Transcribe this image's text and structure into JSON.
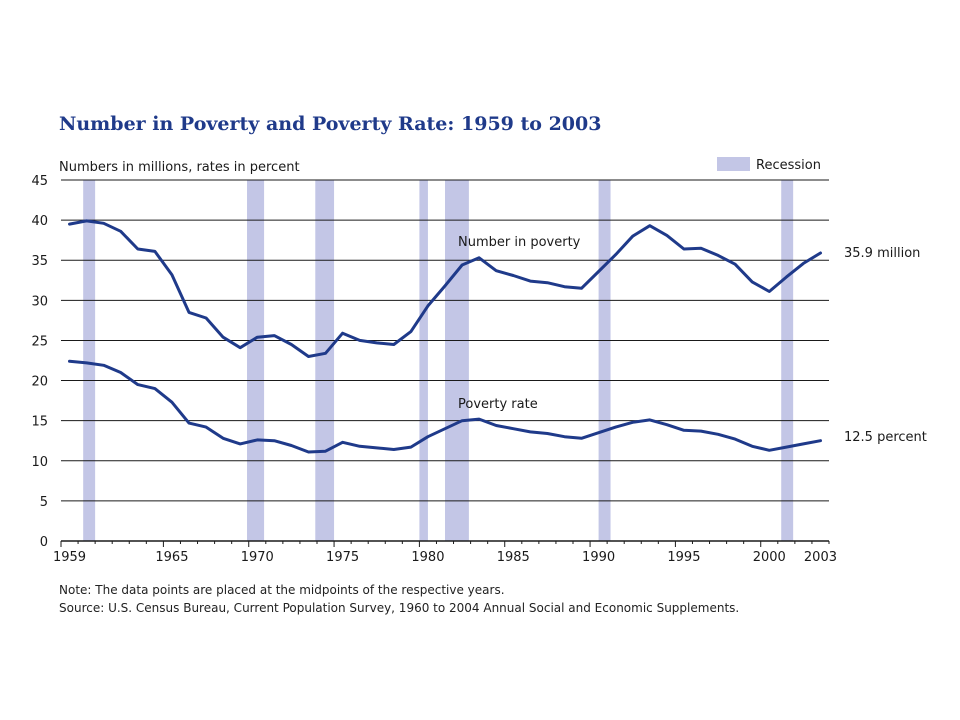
{
  "chart_data": {
    "type": "line",
    "title": "Number in Poverty and Poverty Rate:  1959 to 2003",
    "ylabel": "Numbers in millions, rates in percent",
    "ylim": [
      0,
      45
    ],
    "yticks": [
      0,
      5,
      10,
      15,
      20,
      25,
      30,
      35,
      40,
      45
    ],
    "xlim": [
      1959,
      2003
    ],
    "xticks": [
      1959,
      1965,
      1970,
      1975,
      1980,
      1985,
      1990,
      1995,
      2000,
      2003
    ],
    "grid": true,
    "legend": {
      "label": "Recession",
      "color": "#c3c6e6",
      "position": "top-right"
    },
    "recessions": [
      [
        1960.3,
        1961.0
      ],
      [
        1969.9,
        1970.9
      ],
      [
        1973.9,
        1975.0
      ],
      [
        1980.0,
        1980.5
      ],
      [
        1981.5,
        1982.9
      ],
      [
        1990.5,
        1991.2
      ],
      [
        2001.2,
        2001.9
      ]
    ],
    "x": [
      1959,
      1960,
      1961,
      1962,
      1963,
      1964,
      1965,
      1966,
      1967,
      1968,
      1969,
      1970,
      1971,
      1972,
      1973,
      1974,
      1975,
      1976,
      1977,
      1978,
      1979,
      1980,
      1981,
      1982,
      1983,
      1984,
      1985,
      1986,
      1987,
      1988,
      1989,
      1990,
      1991,
      1992,
      1993,
      1994,
      1995,
      1996,
      1997,
      1998,
      1999,
      2000,
      2001,
      2002,
      2003
    ],
    "series": [
      {
        "name": "Number in poverty",
        "color": "#1f3a8a",
        "end_label": "35.9 million",
        "values": [
          39.5,
          39.9,
          39.6,
          38.6,
          36.4,
          36.1,
          33.2,
          28.5,
          27.8,
          25.4,
          24.1,
          25.4,
          25.6,
          24.5,
          23.0,
          23.4,
          25.9,
          25.0,
          24.7,
          24.5,
          26.1,
          29.3,
          31.8,
          34.4,
          35.3,
          33.7,
          33.1,
          32.4,
          32.2,
          31.7,
          31.5,
          33.6,
          35.7,
          38.0,
          39.3,
          38.1,
          36.4,
          36.5,
          35.6,
          34.5,
          32.3,
          31.1,
          32.9,
          34.6,
          35.9
        ]
      },
      {
        "name": "Poverty rate",
        "color": "#1f3a8a",
        "end_label": "12.5 percent",
        "values": [
          22.4,
          22.2,
          21.9,
          21.0,
          19.5,
          19.0,
          17.3,
          14.7,
          14.2,
          12.8,
          12.1,
          12.6,
          12.5,
          11.9,
          11.1,
          11.2,
          12.3,
          11.8,
          11.6,
          11.4,
          11.7,
          13.0,
          14.0,
          15.0,
          15.2,
          14.4,
          14.0,
          13.6,
          13.4,
          13.0,
          12.8,
          13.5,
          14.2,
          14.8,
          15.1,
          14.5,
          13.8,
          13.7,
          13.3,
          12.7,
          11.8,
          11.3,
          11.7,
          12.1,
          12.5
        ]
      }
    ]
  },
  "notes": {
    "note": "Note:  The data points are placed at the midpoints of the respective years.",
    "source": "Source:  U.S. Census Bureau, Current Population Survey, 1960 to 2004 Annual Social and Economic Supplements."
  }
}
